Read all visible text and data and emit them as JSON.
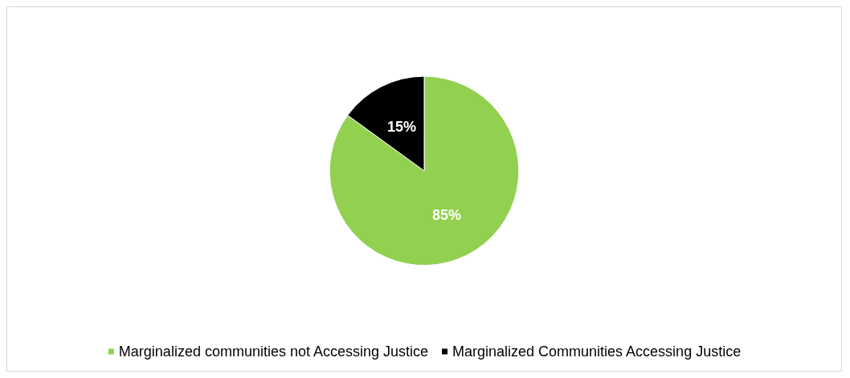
{
  "chart_data": {
    "type": "pie",
    "categories": [
      "Marginalized communities not Accessing Justice",
      "Marginalized Communities Accessing Justice"
    ],
    "values": [
      85,
      15
    ],
    "value_labels": [
      "85%",
      "15%"
    ],
    "colors": [
      "#92d050",
      "#000000"
    ],
    "legend": "bottom"
  }
}
